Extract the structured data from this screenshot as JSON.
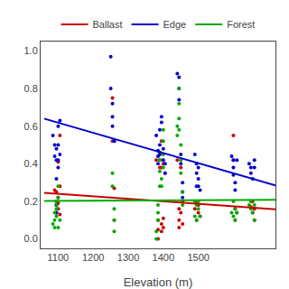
{
  "chart_data": {
    "type": "scatter",
    "xlabel": "Elevation (m)",
    "xlim": [
      1050,
      1720
    ],
    "ylim": [
      -0.05,
      1.05
    ],
    "xticks": [
      1100,
      1200,
      1300,
      1400,
      1500
    ],
    "yticks": [
      {
        "value": 0.0,
        "label": "0.0"
      },
      0.2,
      0.4,
      0.6,
      0.8,
      {
        "value": 1.0,
        "label": "1.0"
      }
    ],
    "grid": false,
    "legend": "top",
    "series": [
      {
        "name": "Ballast",
        "color": "#cc0000",
        "x": [
          1090,
          1095,
          1095,
          1095,
          1095,
          1100,
          1100,
          1100,
          1100,
          1105,
          1105,
          1105,
          1255,
          1255,
          1260,
          1260,
          1380,
          1385,
          1385,
          1385,
          1390,
          1390,
          1390,
          1395,
          1395,
          1395,
          1395,
          1400,
          1400,
          1400,
          1405,
          1440,
          1445,
          1445,
          1445,
          1450,
          1450,
          1455,
          1455,
          1490,
          1495,
          1495,
          1500,
          1500,
          1505,
          1600,
          1600,
          1605,
          1605,
          1610,
          1650,
          1655,
          1655,
          1660,
          1660
        ],
        "values": [
          0.26,
          0.2,
          0.25,
          0.18,
          0.14,
          0.22,
          0.19,
          0.16,
          0.41,
          0.55,
          0.28,
          0.13,
          0.52,
          0.75,
          0.27,
          0.1,
          0.42,
          0.0,
          0.05,
          0.1,
          0.38,
          0.42,
          0.46,
          0.52,
          0.08,
          0.04,
          0.38,
          0.4,
          0.06,
          0.11,
          0.35,
          0.42,
          0.16,
          0.1,
          0.06,
          0.38,
          0.14,
          0.2,
          0.08,
          0.16,
          0.2,
          0.1,
          0.14,
          0.18,
          0.12,
          0.55,
          0.42,
          0.16,
          0.1,
          0.14,
          0.17,
          0.2,
          0.14,
          0.16,
          0.1
        ],
        "line_x": [
          1060,
          1720
        ],
        "line_values": [
          0.245,
          0.158
        ]
      },
      {
        "name": "Edge",
        "color": "#0000cc",
        "x": [
          1085,
          1090,
          1090,
          1095,
          1095,
          1095,
          1095,
          1095,
          1100,
          1100,
          1100,
          1100,
          1105,
          1105,
          1250,
          1250,
          1255,
          1255,
          1255,
          1260,
          1260,
          1380,
          1385,
          1385,
          1385,
          1390,
          1390,
          1390,
          1395,
          1395,
          1400,
          1400,
          1405,
          1405,
          1440,
          1445,
          1445,
          1445,
          1450,
          1450,
          1455,
          1455,
          1455,
          1490,
          1495,
          1495,
          1495,
          1500,
          1500,
          1500,
          1505,
          1595,
          1600,
          1600,
          1600,
          1605,
          1605,
          1610,
          1645,
          1650,
          1650,
          1655,
          1660,
          1660
        ],
        "values": [
          0.55,
          0.44,
          0.5,
          0.48,
          0.42,
          0.32,
          0.18,
          0.14,
          0.5,
          0.42,
          0.38,
          0.6,
          0.63,
          0.45,
          0.97,
          0.8,
          0.72,
          0.65,
          0.6,
          0.52,
          0.52,
          0.55,
          0.47,
          0.44,
          0.4,
          0.58,
          0.5,
          0.45,
          0.65,
          0.62,
          0.42,
          0.48,
          0.4,
          0.35,
          0.88,
          0.86,
          0.8,
          0.74,
          0.45,
          0.4,
          0.3,
          0.25,
          0.22,
          0.45,
          0.4,
          0.35,
          0.28,
          0.38,
          0.32,
          0.28,
          0.26,
          0.44,
          0.42,
          0.38,
          0.34,
          0.3,
          0.26,
          0.42,
          0.4,
          0.38,
          0.35,
          0.32,
          0.42,
          0.38
        ],
        "line_x": [
          1060,
          1720
        ],
        "line_values": [
          0.64,
          0.285
        ]
      },
      {
        "name": "Forest",
        "color": "#00aa00",
        "x": [
          1085,
          1090,
          1090,
          1090,
          1095,
          1095,
          1095,
          1095,
          1100,
          1100,
          1100,
          1105,
          1255,
          1255,
          1260,
          1260,
          1260,
          1380,
          1380,
          1385,
          1385,
          1385,
          1390,
          1390,
          1390,
          1395,
          1395,
          1400,
          1400,
          1400,
          1400,
          1440,
          1440,
          1445,
          1445,
          1445,
          1445,
          1450,
          1450,
          1450,
          1455,
          1455,
          1490,
          1490,
          1495,
          1495,
          1500,
          1500,
          1505,
          1595,
          1600,
          1600,
          1605,
          1605,
          1610,
          1645,
          1650,
          1650,
          1655,
          1660,
          1660
        ],
        "values": [
          0.08,
          0.14,
          0.1,
          0.06,
          0.2,
          0.16,
          0.12,
          0.18,
          0.22,
          0.28,
          0.06,
          0.1,
          0.28,
          0.35,
          0.04,
          0.1,
          0.16,
          0.0,
          0.04,
          0.18,
          0.14,
          0.1,
          0.28,
          0.36,
          0.42,
          0.32,
          0.28,
          0.58,
          0.52,
          0.45,
          0.38,
          0.6,
          0.55,
          0.8,
          0.72,
          0.64,
          0.58,
          0.5,
          0.42,
          0.35,
          0.25,
          0.18,
          0.2,
          0.12,
          0.18,
          0.1,
          0.2,
          0.16,
          0.12,
          0.14,
          0.2,
          0.12,
          0.16,
          0.1,
          0.14,
          0.18,
          0.2,
          0.16,
          0.14,
          0.18,
          0.1
        ],
        "line_x": [
          1060,
          1720
        ],
        "line_values": [
          0.202,
          0.208
        ]
      }
    ]
  }
}
